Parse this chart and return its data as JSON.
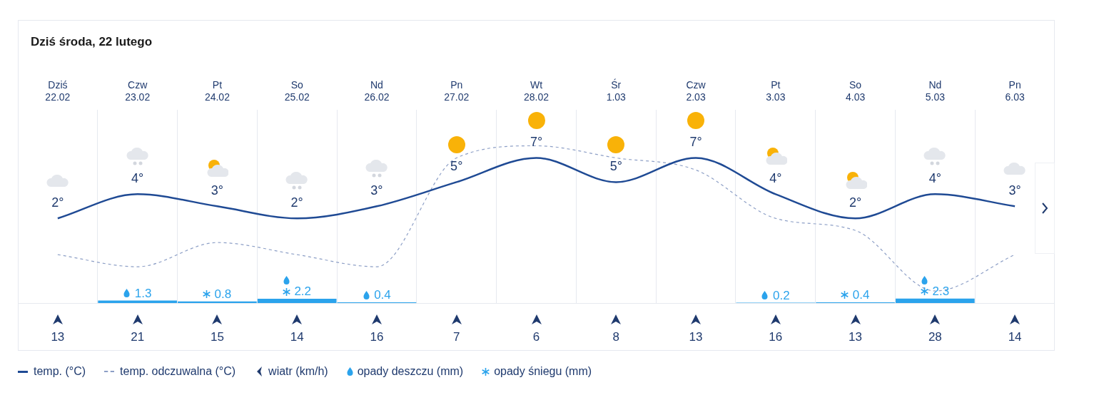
{
  "chart_data": [
    {
      "type": "line",
      "title": "Dziś środa, 22 lutego",
      "categories": [
        "Dziś 22.02",
        "Czw 23.02",
        "Pt 24.02",
        "So 25.02",
        "Nd 26.02",
        "Pn 27.02",
        "Wt 28.02",
        "Śr 1.03",
        "Czw 2.03",
        "Pt 3.03",
        "So 4.03",
        "Nd 5.03",
        "Pn 6.03"
      ],
      "ylim": [
        -5,
        11
      ],
      "y2lim": [
        0,
        100
      ],
      "grid": "x",
      "legend": "bottom",
      "stacked": true,
      "tick_labels": "x",
      "series": [
        {
          "name": "temp. (°C)",
          "color": "#1f4a94",
          "line_style": "solid",
          "marker": "none",
          "values": [
            2,
            4,
            3,
            2,
            3,
            5,
            7,
            5,
            7,
            4,
            2,
            4,
            3
          ],
          "value_labels": [
            "2°",
            "4°",
            "3°",
            "2°",
            "3°",
            "5°",
            "7°",
            "5°",
            "7°",
            "4°",
            "2°",
            "4°",
            "3°"
          ]
        },
        {
          "name": "temp. odczuwalna (°C)",
          "color": "#8d9fc6",
          "line_style": "dashed",
          "marker": "none",
          "values": [
            -1,
            -2,
            0,
            -1,
            -2,
            7,
            8,
            7,
            6,
            2,
            1,
            -4,
            -1
          ]
        },
        {
          "name": "opady deszczu (mm)",
          "type": "bar",
          "axis": "y2",
          "color": "#2ba3ec",
          "marker": "circle",
          "values": [
            null,
            1.3,
            null,
            null,
            0.4,
            null,
            null,
            null,
            null,
            0.2,
            null,
            null,
            null
          ],
          "value_labels": [
            null,
            "1.3",
            null,
            null,
            "0.4",
            null,
            null,
            null,
            null,
            "0.2",
            null,
            null,
            null
          ]
        },
        {
          "name": "opady śniegu (mm)",
          "type": "bar",
          "axis": "y2",
          "color": "#2ba3ec",
          "marker": "star",
          "values": [
            null,
            null,
            0.8,
            null,
            null,
            null,
            null,
            null,
            null,
            null,
            0.4,
            null,
            null
          ],
          "value_labels": [
            null,
            null,
            "0.8",
            null,
            null,
            null,
            null,
            null,
            null,
            null,
            "0.4",
            null,
            null
          ]
        },
        {
          "type": "bar",
          "axis": "y2",
          "color": "#2ba3ec",
          "values": [
            null,
            null,
            null,
            2.2,
            null,
            null,
            null,
            null,
            null,
            null,
            null,
            2.3,
            null
          ],
          "value_labels": [
            null,
            null,
            null,
            "2.2",
            null,
            null,
            null,
            null,
            null,
            null,
            null,
            "2.3",
            null
          ]
        }
      ]
    },
    {
      "type": "other",
      "series": [
        {
          "name": "wiatr (km/h)",
          "color": "#1f3a6e",
          "marker": "triangle",
          "values": [
            13,
            21,
            15,
            14,
            16,
            7,
            6,
            8,
            13,
            16,
            13,
            28,
            14
          ],
          "value_labels": [
            "13",
            "21",
            "15",
            "14",
            "16",
            "7",
            "6",
            "8",
            "13",
            "16",
            "13",
            "28",
            "14"
          ]
        }
      ]
    }
  ]
}
